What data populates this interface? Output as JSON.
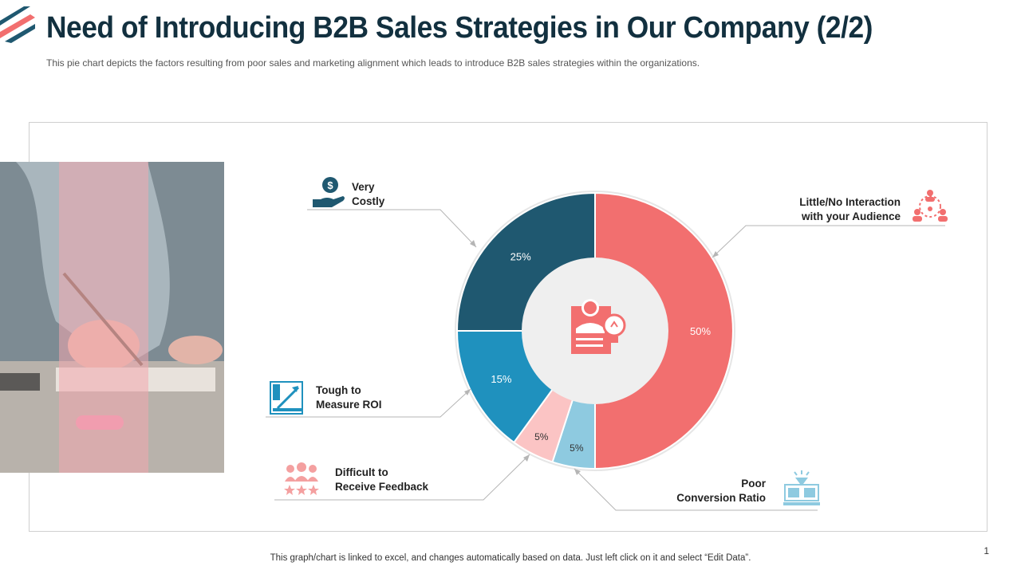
{
  "header": {
    "title": "Need of Introducing B2B Sales Strategies in Our Company (2/2)",
    "subtitle": "This pie chart depicts the factors resulting from  poor sales and marketing alignment which leads to introduce B2B sales strategies within the organizations."
  },
  "footer": {
    "note": "This graph/chart is linked to excel,  and changes automatically based on data. Just left click on it and select “Edit Data”.",
    "page_number": "1"
  },
  "callouts": {
    "very_costly": [
      "Very",
      "Costly"
    ],
    "little_interaction": [
      "Little/No Interaction",
      "with your Audience"
    ],
    "tough_roi": [
      "Tough to",
      "Measure ROI"
    ],
    "difficult_feedback": [
      "Difficult to",
      "Receive Feedback"
    ],
    "poor_conversion": [
      "Poor",
      "Conversion Ratio"
    ]
  },
  "icons": {
    "very_costly": "money-hand-icon",
    "little_interaction": "network-people-icon",
    "tough_roi": "growth-chart-icon",
    "difficult_feedback": "rating-people-icon",
    "poor_conversion": "conversion-screen-icon",
    "center": "businessman-idea-icon"
  },
  "colors": {
    "dark_teal": "#1f5870",
    "coral": "#f26f6f",
    "blue": "#1f91be",
    "light_pink": "#fbc4c4",
    "light_blue": "#8ecae0",
    "title": "#12303f"
  },
  "chart_data": {
    "type": "pie",
    "variant": "donut",
    "slices": [
      {
        "label": "50%",
        "value": 50,
        "category": "Little/No Interaction with your Audience",
        "color": "#f26f6f"
      },
      {
        "label": "5%",
        "value": 5,
        "category": "Poor Conversion Ratio",
        "color": "#8ecae0"
      },
      {
        "label": "5%",
        "value": 5,
        "category": "Difficult to Receive Feedback",
        "color": "#fbc4c4"
      },
      {
        "label": "15%",
        "value": 15,
        "category": "Tough to Measure ROI",
        "color": "#1f91be"
      },
      {
        "label": "25%",
        "value": 25,
        "category": "Very Costly",
        "color": "#1f5870"
      }
    ]
  }
}
